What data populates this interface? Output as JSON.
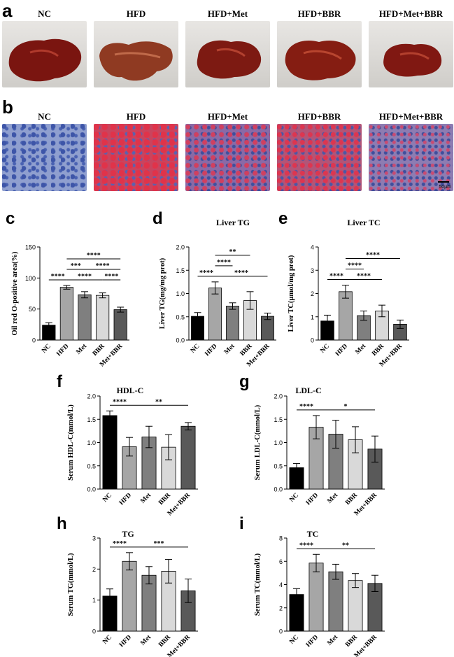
{
  "panels": {
    "a": {
      "letter": "a",
      "labels": [
        "NC",
        "HFD",
        "HFD+Met",
        "HFD+BBR",
        "HFD+Met+BBR"
      ]
    },
    "b": {
      "letter": "b",
      "labels": [
        "NC",
        "HFD",
        "HFD+Met",
        "HFD+BBR",
        "HFD+Met+BBR"
      ],
      "scale_bar": "50μm"
    }
  },
  "colors": {
    "NC": "#000000",
    "HFD": "#a6a6a6",
    "Met": "#7f7f7f",
    "BBR": "#d9d9d9",
    "Met+BBR": "#595959",
    "liver": "#7a1510",
    "stain_blue": "#6f7fb6",
    "stain_red": "#d43a4a"
  },
  "chart_data": [
    {
      "id": "c",
      "letter": "c",
      "type": "bar",
      "title": "",
      "ylabel": "Oil red O-positive area(%)",
      "xlabel": "",
      "categories": [
        "NC",
        "HFD",
        "Met",
        "BBR",
        "Met+BBR"
      ],
      "values": [
        24,
        85,
        73,
        72,
        49
      ],
      "errors": [
        4,
        3,
        5,
        4,
        4
      ],
      "ylim": [
        0,
        150
      ],
      "yticks": [
        "0",
        "50",
        "100",
        "150"
      ],
      "sig": [
        {
          "from": 0,
          "to": 1,
          "text": "****",
          "level": 1
        },
        {
          "from": 1,
          "to": 2,
          "text": "***",
          "level": 2
        },
        {
          "from": 1,
          "to": 4,
          "text": "****",
          "level": 3
        },
        {
          "from": 1,
          "to": 3,
          "text": "****",
          "level": 1
        },
        {
          "from": 2,
          "to": 4,
          "text": "****",
          "level": 2
        },
        {
          "from": 3,
          "to": 4,
          "text": "****",
          "level": 1
        }
      ]
    },
    {
      "id": "d",
      "letter": "d",
      "type": "bar",
      "title": "Liver TG",
      "ylabel": "Liver TG(mg/mg prot)",
      "xlabel": "",
      "categories": [
        "NC",
        "HFD",
        "Met",
        "BBR",
        "Met+BBR"
      ],
      "values": [
        0.51,
        1.12,
        0.73,
        0.85,
        0.51
      ],
      "errors": [
        0.08,
        0.13,
        0.07,
        0.19,
        0.07
      ],
      "ylim": [
        0,
        2.0
      ],
      "yticks": [
        "0.0",
        "0.5",
        "1.0",
        "1.5",
        "2.0"
      ],
      "sig": [
        {
          "from": 0,
          "to": 1,
          "text": "****",
          "level": 1
        },
        {
          "from": 1,
          "to": 2,
          "text": "****",
          "level": 2
        },
        {
          "from": 1,
          "to": 3,
          "text": "**",
          "level": 3
        },
        {
          "from": 1,
          "to": 4,
          "text": "****",
          "level": 1
        }
      ]
    },
    {
      "id": "e",
      "letter": "e",
      "type": "bar",
      "title": "Liver TC",
      "ylabel": "Liver TC(μmol/mg prot)",
      "xlabel": "",
      "categories": [
        "NC",
        "HFD",
        "Met",
        "BBR",
        "Met+BBR"
      ],
      "values": [
        0.82,
        2.08,
        1.05,
        1.25,
        0.68
      ],
      "errors": [
        0.25,
        0.28,
        0.2,
        0.25,
        0.18
      ],
      "ylim": [
        0,
        4
      ],
      "yticks": [
        "0",
        "1",
        "2",
        "3",
        "4"
      ],
      "sig": [
        {
          "from": 0,
          "to": 1,
          "text": "****",
          "level": 1
        },
        {
          "from": 1,
          "to": 2,
          "text": "****",
          "level": 2
        },
        {
          "from": 1,
          "to": 3,
          "text": "****",
          "level": 1
        },
        {
          "from": 1,
          "to": 4,
          "text": "****",
          "level": 3
        }
      ]
    },
    {
      "id": "f",
      "letter": "f",
      "type": "bar",
      "title": "HDL-C",
      "ylabel": "Serum HDL-C(mmol/L)",
      "xlabel": "",
      "categories": [
        "NC",
        "HFD",
        "Met",
        "BBR",
        "Met+BBR"
      ],
      "values": [
        1.58,
        0.91,
        1.12,
        0.9,
        1.35
      ],
      "errors": [
        0.1,
        0.2,
        0.23,
        0.27,
        0.08
      ],
      "ylim": [
        0,
        2.0
      ],
      "yticks": [
        "0.0",
        "0.5",
        "1.0",
        "1.5",
        "2.0"
      ],
      "sig": [
        {
          "from": 0,
          "to": 1,
          "text": "****",
          "level": 1
        },
        {
          "from": 1,
          "to": 4,
          "text": "**",
          "level": 1
        }
      ]
    },
    {
      "id": "g",
      "letter": "g",
      "type": "bar",
      "title": "LDL-C",
      "ylabel": "Serum LDL-C(mmol/L)",
      "xlabel": "",
      "categories": [
        "NC",
        "HFD",
        "Met",
        "BBR",
        "Met+BBR"
      ],
      "values": [
        0.46,
        1.33,
        1.18,
        1.06,
        0.86
      ],
      "errors": [
        0.09,
        0.25,
        0.3,
        0.28,
        0.28
      ],
      "ylim": [
        0,
        2.0
      ],
      "yticks": [
        "0.0",
        "0.5",
        "1.0",
        "1.5",
        "2.0"
      ],
      "sig": [
        {
          "from": 0,
          "to": 1,
          "text": "****",
          "level": 1
        },
        {
          "from": 1,
          "to": 4,
          "text": "*",
          "level": 1
        }
      ]
    },
    {
      "id": "h",
      "letter": "h",
      "type": "bar",
      "title": "TG",
      "ylabel": "Serum TG(mmol/L)",
      "xlabel": "",
      "categories": [
        "NC",
        "HFD",
        "Met",
        "BBR",
        "Met+BBR"
      ],
      "values": [
        1.13,
        2.25,
        1.8,
        1.93,
        1.3
      ],
      "errors": [
        0.23,
        0.28,
        0.28,
        0.38,
        0.38
      ],
      "ylim": [
        0,
        3
      ],
      "yticks": [
        "0",
        "1",
        "2",
        "3"
      ],
      "sig": [
        {
          "from": 0,
          "to": 1,
          "text": "****",
          "level": 1
        },
        {
          "from": 1,
          "to": 4,
          "text": "***",
          "level": 1
        }
      ]
    },
    {
      "id": "i",
      "letter": "i",
      "type": "bar",
      "title": "TC",
      "ylabel": "Serum TC(mmol/L)",
      "xlabel": "",
      "categories": [
        "NC",
        "HFD",
        "Met",
        "BBR",
        "Met+BBR"
      ],
      "values": [
        3.15,
        5.85,
        5.1,
        4.35,
        4.1
      ],
      "errors": [
        0.5,
        0.75,
        0.65,
        0.6,
        0.7
      ],
      "ylim": [
        0,
        8
      ],
      "yticks": [
        "0",
        "2",
        "4",
        "6",
        "8"
      ],
      "sig": [
        {
          "from": 0,
          "to": 1,
          "text": "****",
          "level": 1
        },
        {
          "from": 1,
          "to": 4,
          "text": "**",
          "level": 1
        }
      ]
    }
  ]
}
